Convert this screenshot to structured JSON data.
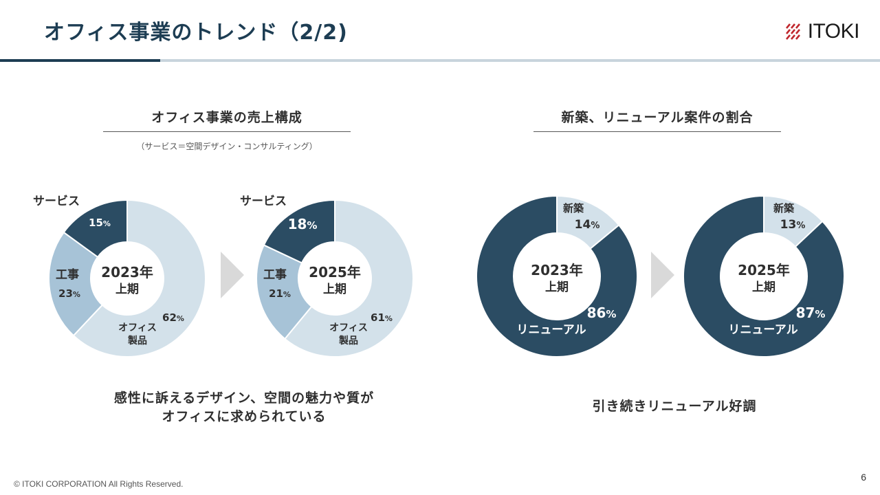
{
  "header": {
    "title": "オフィス事業のトレンド（2/2)",
    "logo_text": "ITOKI",
    "accent_color": "#1d3d53"
  },
  "left_section": {
    "heading": "オフィス事業の売上構成",
    "note": "（サービス＝空間デザイン・コンサルティング）",
    "caption_line1": "感性に訴えるデザイン、空間の魅力や質が",
    "caption_line2": "オフィスに求められている"
  },
  "right_section": {
    "heading": "新築、リニューアル案件の割合",
    "caption": "引き続きリニューアル好調"
  },
  "footer": {
    "copyright": "© ITOKI CORPORATION All Rights Reserved.",
    "page_number": "6"
  },
  "chart_data": [
    {
      "type": "pie",
      "center_label": [
        "2023年",
        "上期"
      ],
      "categories": [
        "オフィス製品",
        "工事",
        "サービス"
      ],
      "values": [
        62,
        23,
        15
      ],
      "labels": [
        {
          "name": [
            "オフィス",
            "製品"
          ],
          "value": "62"
        },
        {
          "name": [
            "工事"
          ],
          "value": "23"
        },
        {
          "name": [
            "サービス"
          ],
          "value": "15"
        }
      ],
      "unit": "%",
      "colors": [
        "#d3e1ea",
        "#a7c3d7",
        "#2b4c63"
      ]
    },
    {
      "type": "pie",
      "center_label": [
        "2025年",
        "上期"
      ],
      "categories": [
        "オフィス製品",
        "工事",
        "サービス"
      ],
      "values": [
        61,
        21,
        18
      ],
      "labels": [
        {
          "name": [
            "オフィス",
            "製品"
          ],
          "value": "61"
        },
        {
          "name": [
            "工事"
          ],
          "value": "21"
        },
        {
          "name": [
            "サービス"
          ],
          "value": "18"
        }
      ],
      "unit": "%",
      "colors": [
        "#d3e1ea",
        "#a7c3d7",
        "#2b4c63"
      ]
    },
    {
      "type": "pie",
      "center_label": [
        "2023年",
        "上期"
      ],
      "categories": [
        "新築",
        "リニューアル"
      ],
      "values": [
        14,
        86
      ],
      "labels": [
        {
          "name": [
            "新築"
          ],
          "value": "14"
        },
        {
          "name": [
            "リニューアル"
          ],
          "value": "86"
        }
      ],
      "unit": "%",
      "colors": [
        "#d3e1ea",
        "#2b4c63"
      ]
    },
    {
      "type": "pie",
      "center_label": [
        "2025年",
        "上期"
      ],
      "categories": [
        "新築",
        "リニューアル"
      ],
      "values": [
        13,
        87
      ],
      "labels": [
        {
          "name": [
            "新築"
          ],
          "value": "13"
        },
        {
          "name": [
            "リニューアル"
          ],
          "value": "87"
        }
      ],
      "unit": "%",
      "colors": [
        "#d3e1ea",
        "#2b4c63"
      ]
    }
  ]
}
